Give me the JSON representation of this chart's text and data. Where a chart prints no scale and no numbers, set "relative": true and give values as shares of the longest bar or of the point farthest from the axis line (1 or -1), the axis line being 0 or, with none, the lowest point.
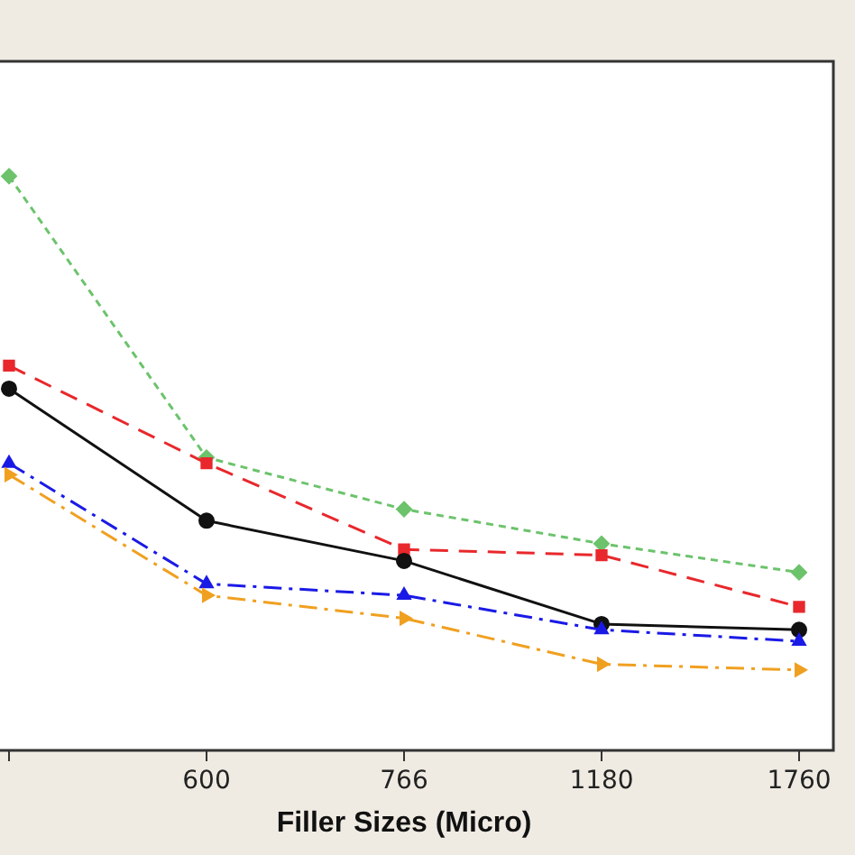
{
  "chart_data": {
    "type": "line",
    "relative": true,
    "xlabel": "Filler Sizes (Micro)",
    "categories": [
      null,
      "600",
      "766",
      "1180",
      "1760"
    ],
    "grid": false,
    "legend": false,
    "series": [
      {
        "color": "#6cc36c",
        "marker": "diamond",
        "line_style": "dotted",
        "values": [
          1,
          0.51,
          0.42,
          0.36,
          0.31
        ]
      },
      {
        "color": "#e8282c",
        "marker": "square",
        "line_style": "dashed",
        "values": [
          0.67,
          0.5,
          0.35,
          0.34,
          0.25
        ]
      },
      {
        "color": "#111111",
        "marker": "circle",
        "line_style": "solid",
        "values": [
          0.63,
          0.4,
          0.33,
          0.22,
          0.21
        ]
      },
      {
        "color": "#1a1ae6",
        "marker": "triangle",
        "line_style": "dashdot",
        "values": [
          0.5,
          0.29,
          0.27,
          0.21,
          0.19
        ]
      },
      {
        "color": "#f0a020",
        "marker": "triangle-right",
        "line_style": "dashdot",
        "values": [
          0.48,
          0.27,
          0.23,
          0.15,
          0.14
        ]
      }
    ]
  }
}
